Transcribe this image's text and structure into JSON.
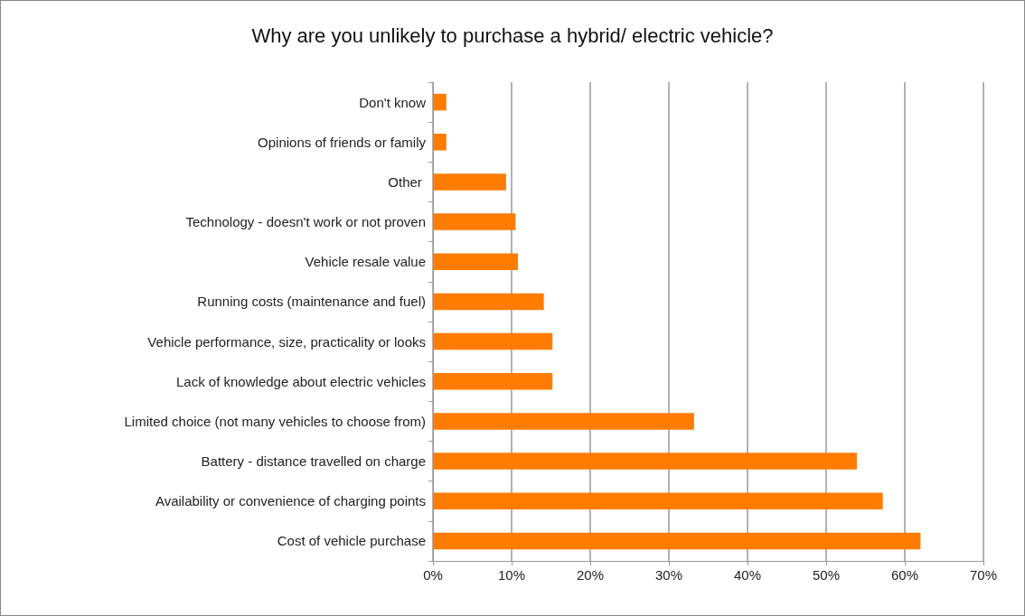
{
  "chart_data": {
    "type": "bar",
    "orientation": "horizontal",
    "title": "Why are you unlikely to purchase a hybrid/ electric vehicle?",
    "categories": [
      "Don't know",
      "Opinions of friends or family",
      "Other ",
      "Technology - doesn't work or not proven",
      "Vehicle resale value",
      "Running costs (maintenance and fuel)",
      "Vehicle performance, size, practicality or looks",
      "Lack of knowledge about electric vehicles",
      "Limited choice (not many vehicles to choose from)",
      "Battery - distance travelled on charge",
      "Availability or convenience of charging points",
      "Cost of vehicle purchase"
    ],
    "values": [
      1.7,
      1.7,
      9.3,
      10.5,
      10.8,
      14.1,
      15.2,
      15.2,
      33.2,
      53.9,
      57.2,
      62.0
    ],
    "color": "#ff7c00",
    "xlim": [
      0,
      70
    ],
    "xticks": [
      {
        "value": 0,
        "label": "0%"
      },
      {
        "value": 10,
        "label": "10%"
      },
      {
        "value": 20,
        "label": "20%"
      },
      {
        "value": 30,
        "label": "30%"
      },
      {
        "value": 40,
        "label": "40%"
      },
      {
        "value": 50,
        "label": "50%"
      },
      {
        "value": 60,
        "label": "60%"
      },
      {
        "value": 70,
        "label": "70%"
      }
    ],
    "grid": "x"
  }
}
